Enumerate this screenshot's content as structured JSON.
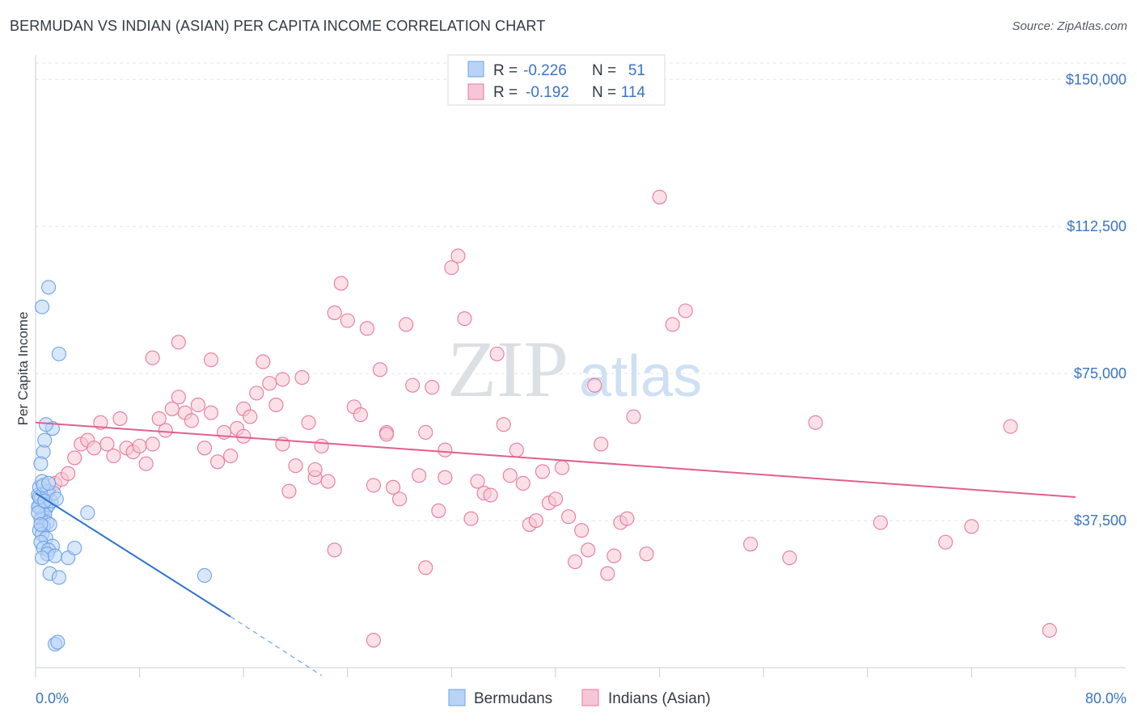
{
  "title": "BERMUDAN VS INDIAN (ASIAN) PER CAPITA INCOME CORRELATION CHART",
  "source": "Source: ZipAtlas.com",
  "watermark": {
    "zip": "ZIP",
    "atlas": "atlas"
  },
  "legend": {
    "rows": [
      {
        "r_label": "R =",
        "r_value": "-0.226",
        "n_label": "N =",
        "n_value": "51"
      },
      {
        "r_label": "R =",
        "r_value": "-0.192",
        "n_label": "N =",
        "n_value": "114"
      }
    ]
  },
  "bottom_legend": [
    "Bermudans",
    "Indians (Asian)"
  ],
  "chart_data": {
    "type": "scatter",
    "title": "BERMUDAN VS INDIAN (ASIAN) PER CAPITA INCOME CORRELATION CHART",
    "xlabel": "",
    "ylabel": "Per Capita Income",
    "xlim": [
      0,
      80
    ],
    "ylim": [
      0,
      155000
    ],
    "x_tick_labels": [
      {
        "value": 0,
        "label": "0.0%"
      },
      {
        "value": 80,
        "label": "80.0%"
      }
    ],
    "y_ticks": [
      {
        "value": 37500,
        "label": "$37,500"
      },
      {
        "value": 75000,
        "label": "$75,000"
      },
      {
        "value": 112500,
        "label": "$112,500"
      },
      {
        "value": 150000,
        "label": "$150,000"
      }
    ],
    "grid": true,
    "series": [
      {
        "name": "Bermudans",
        "color": "#6ea3e8",
        "fill": "#b8d3f5",
        "r": -0.226,
        "n": 51,
        "trend": {
          "x0": 0,
          "y0": 44500,
          "x1": 15,
          "y1": 13000,
          "dash_to_x": 22,
          "dash_to_y": -2000
        },
        "points": [
          [
            0.2,
            44000
          ],
          [
            0.3,
            46000
          ],
          [
            0.5,
            47500
          ],
          [
            0.4,
            43000
          ],
          [
            0.6,
            42000
          ],
          [
            0.3,
            41000
          ],
          [
            0.8,
            40500
          ],
          [
            0.5,
            40000
          ],
          [
            1.0,
            41500
          ],
          [
            1.2,
            42500
          ],
          [
            0.7,
            39000
          ],
          [
            0.4,
            38000
          ],
          [
            0.9,
            37000
          ],
          [
            0.6,
            36000
          ],
          [
            0.3,
            35000
          ],
          [
            1.1,
            36500
          ],
          [
            0.5,
            34000
          ],
          [
            0.8,
            33000
          ],
          [
            0.4,
            32000
          ],
          [
            1.3,
            31000
          ],
          [
            0.6,
            30500
          ],
          [
            1.0,
            30000
          ],
          [
            0.9,
            29000
          ],
          [
            0.5,
            28000
          ],
          [
            1.5,
            28500
          ],
          [
            2.5,
            28000
          ],
          [
            3.0,
            30500
          ],
          [
            1.1,
            24000
          ],
          [
            1.8,
            23000
          ],
          [
            13.0,
            23500
          ],
          [
            0.6,
            55000
          ],
          [
            0.4,
            52000
          ],
          [
            0.7,
            58000
          ],
          [
            1.3,
            61000
          ],
          [
            0.8,
            62000
          ],
          [
            1.8,
            80000
          ],
          [
            1.0,
            97000
          ],
          [
            0.5,
            92000
          ],
          [
            1.5,
            6000
          ],
          [
            1.7,
            6500
          ],
          [
            4.0,
            39500
          ],
          [
            0.2,
            41000
          ],
          [
            0.3,
            43500
          ],
          [
            0.9,
            45000
          ],
          [
            1.4,
            44500
          ],
          [
            0.6,
            46500
          ],
          [
            0.2,
            39500
          ],
          [
            1.0,
            47000
          ],
          [
            0.7,
            42500
          ],
          [
            1.6,
            43000
          ],
          [
            0.4,
            36500
          ]
        ]
      },
      {
        "name": "Indians (Asian)",
        "color": "#e57a9e",
        "fill": "#f7c6d6",
        "r": -0.192,
        "n": 114,
        "trend": {
          "x0": 0,
          "y0": 62500,
          "x1": 80,
          "y1": 43500
        },
        "points": [
          [
            1.0,
            45000
          ],
          [
            1.5,
            47000
          ],
          [
            2.0,
            48000
          ],
          [
            2.5,
            49500
          ],
          [
            3.0,
            53500
          ],
          [
            3.5,
            57000
          ],
          [
            4.0,
            58000
          ],
          [
            4.5,
            56000
          ],
          [
            5.0,
            62500
          ],
          [
            5.5,
            57000
          ],
          [
            6.0,
            54000
          ],
          [
            6.5,
            63500
          ],
          [
            7.0,
            56000
          ],
          [
            7.5,
            55000
          ],
          [
            8.0,
            56500
          ],
          [
            8.5,
            52000
          ],
          [
            9.0,
            57000
          ],
          [
            9.5,
            63500
          ],
          [
            10.0,
            60500
          ],
          [
            10.5,
            66000
          ],
          [
            11.0,
            69000
          ],
          [
            11.5,
            65000
          ],
          [
            12.0,
            63000
          ],
          [
            12.5,
            67000
          ],
          [
            13.0,
            56000
          ],
          [
            13.5,
            65000
          ],
          [
            14.0,
            52500
          ],
          [
            14.5,
            60000
          ],
          [
            15.0,
            54000
          ],
          [
            15.5,
            61000
          ],
          [
            16.0,
            66000
          ],
          [
            16.5,
            64000
          ],
          [
            17.0,
            70000
          ],
          [
            17.5,
            78000
          ],
          [
            18.0,
            72500
          ],
          [
            18.5,
            67000
          ],
          [
            19.0,
            57000
          ],
          [
            19.5,
            45000
          ],
          [
            20.0,
            51500
          ],
          [
            20.5,
            74000
          ],
          [
            21.0,
            62500
          ],
          [
            21.5,
            48500
          ],
          [
            22.0,
            56500
          ],
          [
            22.5,
            47500
          ],
          [
            23.0,
            90500
          ],
          [
            23.5,
            98000
          ],
          [
            24.0,
            88500
          ],
          [
            24.5,
            66500
          ],
          [
            25.0,
            64500
          ],
          [
            25.5,
            86500
          ],
          [
            26.0,
            46500
          ],
          [
            26.5,
            76000
          ],
          [
            27.0,
            60000
          ],
          [
            27.5,
            46000
          ],
          [
            28.0,
            43000
          ],
          [
            28.5,
            87500
          ],
          [
            29.0,
            72000
          ],
          [
            29.5,
            49000
          ],
          [
            30.0,
            60000
          ],
          [
            30.5,
            71500
          ],
          [
            31.0,
            40000
          ],
          [
            31.5,
            48500
          ],
          [
            32.0,
            102000
          ],
          [
            32.5,
            105000
          ],
          [
            33.0,
            89000
          ],
          [
            33.5,
            38000
          ],
          [
            34.0,
            47500
          ],
          [
            34.5,
            44500
          ],
          [
            35.0,
            44000
          ],
          [
            35.5,
            80000
          ],
          [
            36.0,
            62000
          ],
          [
            36.5,
            49000
          ],
          [
            37.0,
            55500
          ],
          [
            37.5,
            47000
          ],
          [
            38.0,
            36500
          ],
          [
            38.5,
            37500
          ],
          [
            39.0,
            50000
          ],
          [
            39.5,
            42000
          ],
          [
            40.0,
            43000
          ],
          [
            40.5,
            51000
          ],
          [
            41.0,
            38500
          ],
          [
            41.5,
            27000
          ],
          [
            42.0,
            35000
          ],
          [
            42.5,
            30000
          ],
          [
            43.0,
            72000
          ],
          [
            43.5,
            57000
          ],
          [
            44.0,
            24000
          ],
          [
            44.5,
            28500
          ],
          [
            45.0,
            37000
          ],
          [
            45.5,
            38000
          ],
          [
            46.0,
            64000
          ],
          [
            47.0,
            29000
          ],
          [
            48.0,
            120000
          ],
          [
            49.0,
            87500
          ],
          [
            50.0,
            91000
          ],
          [
            55.0,
            31500
          ],
          [
            58.0,
            28000
          ],
          [
            60.0,
            62500
          ],
          [
            65.0,
            37000
          ],
          [
            70.0,
            32000
          ],
          [
            72.0,
            36000
          ],
          [
            75.0,
            61500
          ],
          [
            78.0,
            9500
          ],
          [
            13.5,
            78500
          ],
          [
            19.0,
            73500
          ],
          [
            11.0,
            83000
          ],
          [
            9.0,
            79000
          ],
          [
            27.0,
            59500
          ],
          [
            21.5,
            50500
          ],
          [
            30.0,
            25500
          ],
          [
            26.0,
            7000
          ],
          [
            31.5,
            55500
          ],
          [
            16.0,
            59000
          ],
          [
            23.0,
            30000
          ]
        ]
      }
    ]
  }
}
